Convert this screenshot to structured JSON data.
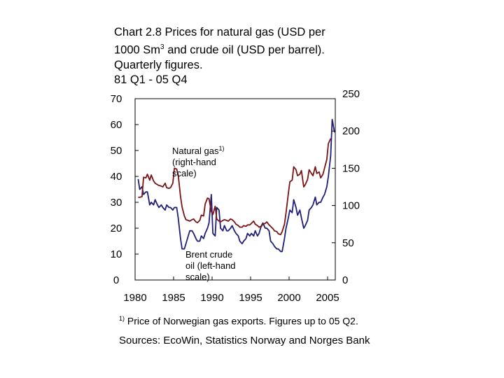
{
  "title": {
    "line1": "Chart 2.8 Prices for natural gas (USD per",
    "line2a": "1000 Sm",
    "line2sup": "3",
    "line2b": " and crude oil (USD per barrel).",
    "line3": "Quarterly figures.",
    "line4": "81 Q1 - 05 Q4"
  },
  "footnote": {
    "marker": "1)",
    "text": " Price of Norwegian gas exports. Figures up to 05 Q2."
  },
  "sources": "Sources: EcoWin, Statistics Norway and Norges Bank",
  "colors": {
    "oil": "#1f1f7a",
    "gas": "#7a1414"
  },
  "chart_data": {
    "type": "line",
    "x_ticks": [
      "1980",
      "1985",
      "1990",
      "1995",
      "2000",
      "2005"
    ],
    "xlim": [
      1980,
      2006
    ],
    "left_axis": {
      "ticks": [
        "0",
        "10",
        "20",
        "30",
        "40",
        "50",
        "60",
        "70"
      ],
      "ylim": [
        0,
        70
      ]
    },
    "right_axis": {
      "ticks": [
        "0",
        "50",
        "100",
        "150",
        "200",
        "250"
      ],
      "ylim": [
        0,
        250
      ]
    },
    "annotations": {
      "gas": {
        "line1": "Natural gas",
        "sup": "1)",
        "line2": "(right-hand",
        "line3": "scale)"
      },
      "oil": {
        "line1": "Brent crude",
        "line2": "oil (left-hand",
        "line3": "scale)"
      }
    },
    "series": [
      {
        "axis": "left",
        "x": [
          1980.4,
          1980.6,
          1980.9,
          1981.1,
          1981.4,
          1981.6,
          1981.9,
          1982.1,
          1982.4,
          1982.6,
          1982.9,
          1983.1,
          1983.4,
          1983.6,
          1983.9,
          1984.1,
          1984.4,
          1984.6,
          1984.9,
          1985.1,
          1985.4,
          1985.6,
          1985.9,
          1986.1,
          1986.4,
          1986.6,
          1986.9,
          1987.1,
          1987.4,
          1987.6,
          1987.9,
          1988.1,
          1988.4,
          1988.6,
          1988.9,
          1989.1,
          1989.4,
          1989.6,
          1989.9,
          1990.1,
          1990.4,
          1990.6,
          1990.9,
          1991.1,
          1991.4,
          1991.6,
          1991.9,
          1992.1,
          1992.4,
          1992.6,
          1992.9,
          1993.1,
          1993.4,
          1993.6,
          1993.9,
          1994.1,
          1994.4,
          1994.6,
          1994.9,
          1995.1,
          1995.4,
          1995.6,
          1995.9,
          1996.1,
          1996.4,
          1996.6,
          1996.9,
          1997.1,
          1997.4,
          1997.6,
          1997.9,
          1998.1,
          1998.4,
          1998.6,
          1998.9,
          1999.1,
          1999.4,
          1999.6,
          1999.9,
          2000.1,
          2000.4,
          2000.6,
          2000.9,
          2001.1,
          2001.4,
          2001.6,
          2001.9,
          2002.1,
          2002.4,
          2002.6,
          2002.9,
          2003.1,
          2003.4,
          2003.6,
          2003.9,
          2004.1,
          2004.4,
          2004.6,
          2004.9,
          2005.1,
          2005.4,
          2005.6,
          2005.9
        ],
        "values": [
          39,
          35,
          36,
          33,
          34,
          34,
          29,
          30,
          29,
          31,
          29,
          28,
          29,
          28,
          27,
          29,
          28,
          28,
          27,
          28,
          28,
          24,
          16,
          12,
          12,
          14,
          17,
          19,
          19,
          18,
          16,
          15,
          15,
          17,
          16,
          18,
          20,
          22,
          33,
          18,
          17,
          28,
          27,
          20,
          19,
          21,
          19,
          19,
          20,
          21,
          19,
          18,
          17,
          15,
          14,
          15,
          16,
          18,
          17,
          18,
          17,
          19,
          17,
          18,
          21,
          22,
          20,
          20,
          19,
          15,
          14,
          13,
          12,
          12,
          11,
          11,
          16,
          20,
          24,
          27,
          26,
          31,
          28,
          25,
          27,
          24,
          20,
          21,
          23,
          27,
          28,
          29,
          32,
          29,
          30,
          30,
          32,
          33,
          36,
          40,
          48,
          62,
          57
        ]
      },
      {
        "axis": "right",
        "x": [
          1980.4,
          1980.6,
          1980.9,
          1981.1,
          1981.4,
          1981.6,
          1981.9,
          1982.1,
          1982.4,
          1982.6,
          1982.9,
          1983.1,
          1983.4,
          1983.6,
          1983.9,
          1984.1,
          1984.4,
          1984.6,
          1984.9,
          1985.1,
          1985.4,
          1985.6,
          1985.9,
          1986.1,
          1986.4,
          1986.6,
          1986.9,
          1987.1,
          1987.4,
          1987.6,
          1987.9,
          1988.1,
          1988.4,
          1988.6,
          1988.9,
          1989.1,
          1989.4,
          1989.6,
          1989.9,
          1990.1,
          1990.4,
          1990.6,
          1990.9,
          1991.1,
          1991.4,
          1991.6,
          1991.9,
          1992.1,
          1992.4,
          1992.6,
          1992.9,
          1993.1,
          1993.4,
          1993.6,
          1993.9,
          1994.1,
          1994.4,
          1994.6,
          1994.9,
          1995.1,
          1995.4,
          1995.6,
          1995.9,
          1996.1,
          1996.4,
          1996.6,
          1996.9,
          1997.1,
          1997.4,
          1997.6,
          1997.9,
          1998.1,
          1998.4,
          1998.6,
          1998.9,
          1999.1,
          1999.4,
          1999.6,
          1999.9,
          2000.1,
          2000.4,
          2000.6,
          2000.9,
          2001.1,
          2001.4,
          2001.6,
          2001.9,
          2002.1,
          2002.4,
          2002.6,
          2002.9,
          2003.1,
          2003.4,
          2003.6,
          2003.9,
          2004.1,
          2004.4,
          2004.6,
          2004.9,
          2005.1,
          2005.4
        ],
        "values": [
          111,
          111,
          112,
          138,
          137,
          142,
          134,
          141,
          133,
          130,
          128,
          127,
          126,
          125,
          130,
          124,
          123,
          124,
          130,
          150,
          149,
          141,
          112,
          98,
          86,
          81,
          80,
          79,
          81,
          82,
          78,
          77,
          80,
          87,
          86,
          102,
          110,
          109,
          92,
          88,
          99,
          82,
          79,
          78,
          80,
          81,
          80,
          79,
          82,
          81,
          78,
          75,
          73,
          71,
          71,
          73,
          72,
          74,
          74,
          76,
          79,
          75,
          73,
          71,
          72,
          75,
          76,
          78,
          74,
          72,
          69,
          66,
          65,
          62,
          61,
          65,
          75,
          90,
          116,
          132,
          134,
          152,
          148,
          140,
          142,
          147,
          125,
          128,
          135,
          148,
          143,
          140,
          152,
          143,
          145,
          137,
          142,
          150,
          162,
          183,
          190
        ]
      }
    ]
  }
}
